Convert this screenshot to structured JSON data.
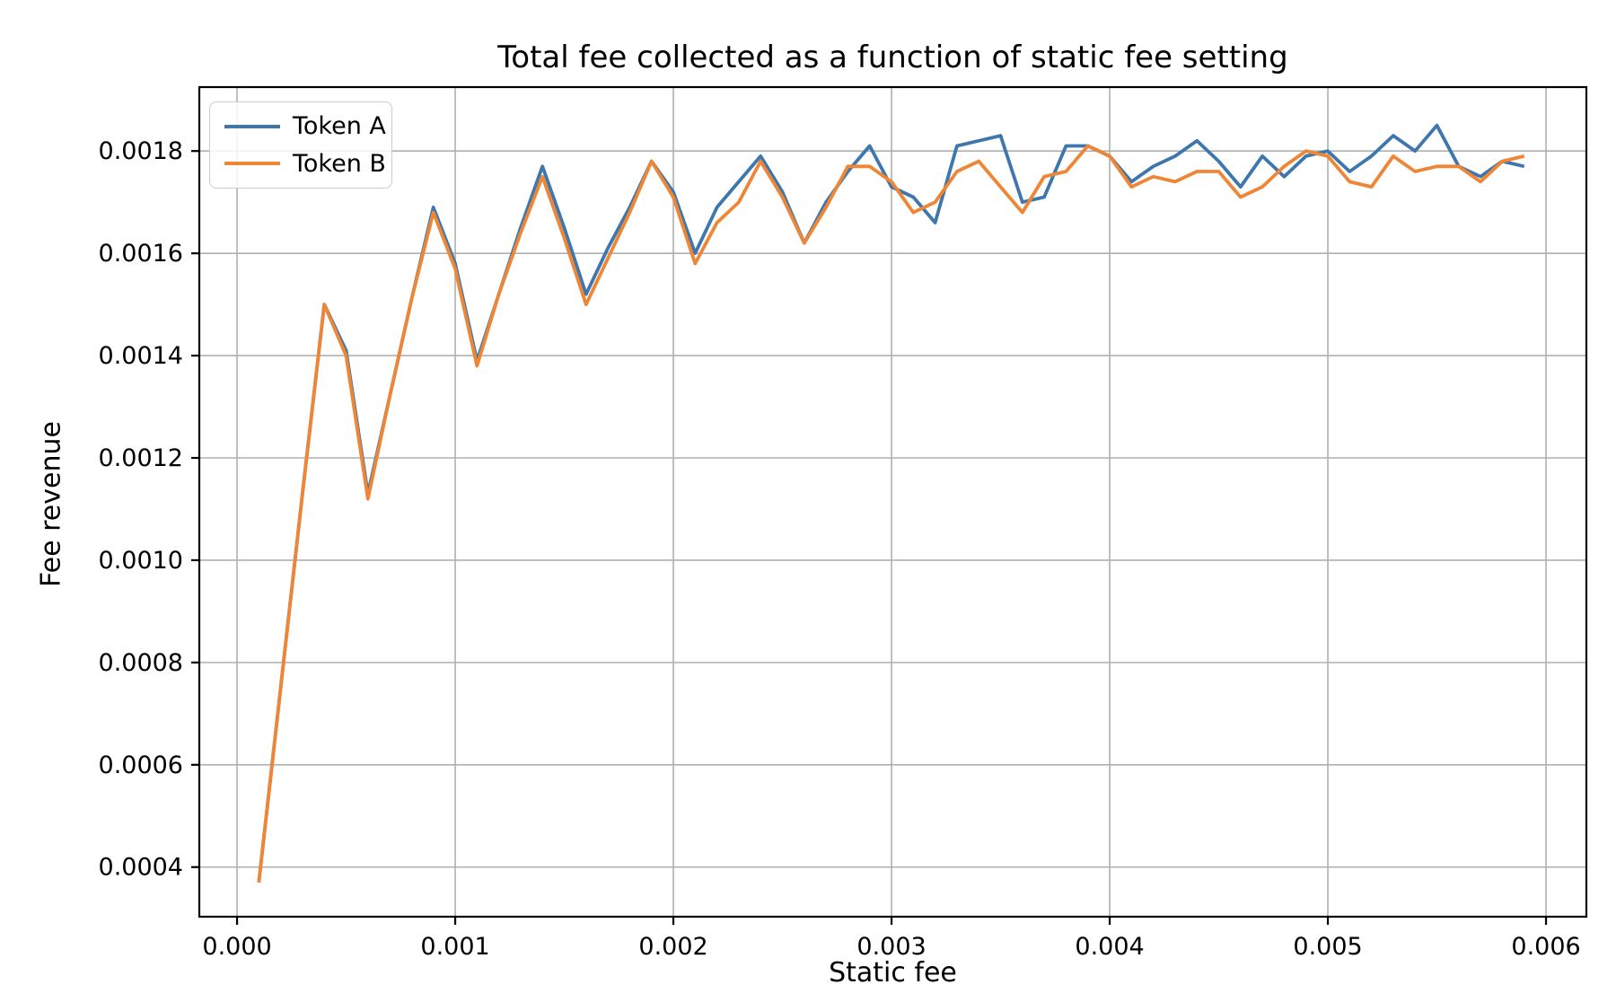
{
  "figure": {
    "title": "Total fee collected as a function of static fee setting",
    "xlabel": "Static fee",
    "ylabel": "Fee revenue",
    "background_color": "#ffffff",
    "grid_color": "#b0b0b0",
    "spine_color": "#000000",
    "text_color": "#000000"
  },
  "legend": {
    "items": [
      {
        "label": "Token A",
        "color": "#3d77ae"
      },
      {
        "label": "Token B",
        "color": "#ef8635"
      }
    ]
  },
  "chart_data": {
    "type": "line",
    "title": "Total fee collected as a function of static fee setting",
    "xlabel": "Static fee",
    "ylabel": "Fee revenue",
    "grid": true,
    "legend_position": "upper left",
    "xlim": [
      -0.000173,
      0.006185
    ],
    "ylim": [
      0.000303,
      0.001925
    ],
    "x_ticks": [
      {
        "v": 0.0,
        "label": "0.000"
      },
      {
        "v": 0.001,
        "label": "0.001"
      },
      {
        "v": 0.002,
        "label": "0.002"
      },
      {
        "v": 0.003,
        "label": "0.003"
      },
      {
        "v": 0.004,
        "label": "0.004"
      },
      {
        "v": 0.005,
        "label": "0.005"
      },
      {
        "v": 0.006,
        "label": "0.006"
      }
    ],
    "y_ticks": [
      {
        "v": 0.0004,
        "label": "0.0004"
      },
      {
        "v": 0.0006,
        "label": "0.0006"
      },
      {
        "v": 0.0008,
        "label": "0.0008"
      },
      {
        "v": 0.001,
        "label": "0.0010"
      },
      {
        "v": 0.0012,
        "label": "0.0012"
      },
      {
        "v": 0.0014,
        "label": "0.0014"
      },
      {
        "v": 0.0016,
        "label": "0.0016"
      },
      {
        "v": 0.0018,
        "label": "0.0018"
      }
    ],
    "x": [
      0.0001,
      0.0002,
      0.0003,
      0.0004,
      0.0005,
      0.0006,
      0.0007,
      0.0008,
      0.0009,
      0.001,
      0.0011,
      0.0012,
      0.0013,
      0.0014,
      0.0015,
      0.0016,
      0.0017,
      0.0018,
      0.0019,
      0.002,
      0.0021,
      0.0022,
      0.0023,
      0.0024,
      0.0025,
      0.0026,
      0.0027,
      0.0028,
      0.0029,
      0.003,
      0.0031,
      0.0032,
      0.0033,
      0.0034,
      0.0035,
      0.0036,
      0.0037,
      0.0038,
      0.0039,
      0.004,
      0.0041,
      0.0042,
      0.0043,
      0.0044,
      0.0045,
      0.0046,
      0.0047,
      0.0048,
      0.0049,
      0.005,
      0.0051,
      0.0052,
      0.0053,
      0.0054,
      0.0055,
      0.0056,
      0.0057,
      0.0058,
      0.0059
    ],
    "series": [
      {
        "name": "Token A",
        "color": "#3d77ae",
        "values": [
          0.00037,
          0.00075,
          0.00113,
          0.0015,
          0.00141,
          0.00113,
          0.00132,
          0.00151,
          0.00169,
          0.00158,
          0.00139,
          0.00152,
          0.00165,
          0.00177,
          0.00165,
          0.00152,
          0.00161,
          0.00169,
          0.00178,
          0.00172,
          0.0016,
          0.00169,
          0.00174,
          0.00179,
          0.00172,
          0.00162,
          0.0017,
          0.00176,
          0.00181,
          0.00173,
          0.00171,
          0.00166,
          0.00181,
          0.00182,
          0.00183,
          0.0017,
          0.00171,
          0.00181,
          0.00181,
          0.00179,
          0.00174,
          0.00177,
          0.00179,
          0.00182,
          0.00178,
          0.00173,
          0.00179,
          0.00175,
          0.00179,
          0.0018,
          0.00176,
          0.00179,
          0.00183,
          0.0018,
          0.00185,
          0.00177,
          0.00175,
          0.00178,
          0.00177
        ]
      },
      {
        "name": "Token B",
        "color": "#ef8635",
        "values": [
          0.00037,
          0.00075,
          0.00113,
          0.0015,
          0.0014,
          0.00112,
          0.00132,
          0.00151,
          0.00168,
          0.00157,
          0.00138,
          0.00152,
          0.00164,
          0.00175,
          0.00163,
          0.0015,
          0.00159,
          0.00168,
          0.00178,
          0.00171,
          0.00158,
          0.00166,
          0.0017,
          0.00178,
          0.00171,
          0.00162,
          0.00169,
          0.00177,
          0.00177,
          0.00174,
          0.00168,
          0.0017,
          0.00176,
          0.00178,
          0.00173,
          0.00168,
          0.00175,
          0.00176,
          0.00181,
          0.00179,
          0.00173,
          0.00175,
          0.00174,
          0.00176,
          0.00176,
          0.00171,
          0.00173,
          0.00177,
          0.0018,
          0.00179,
          0.00174,
          0.00173,
          0.00179,
          0.00176,
          0.00177,
          0.00177,
          0.00174,
          0.00178,
          0.00179
        ]
      }
    ]
  }
}
